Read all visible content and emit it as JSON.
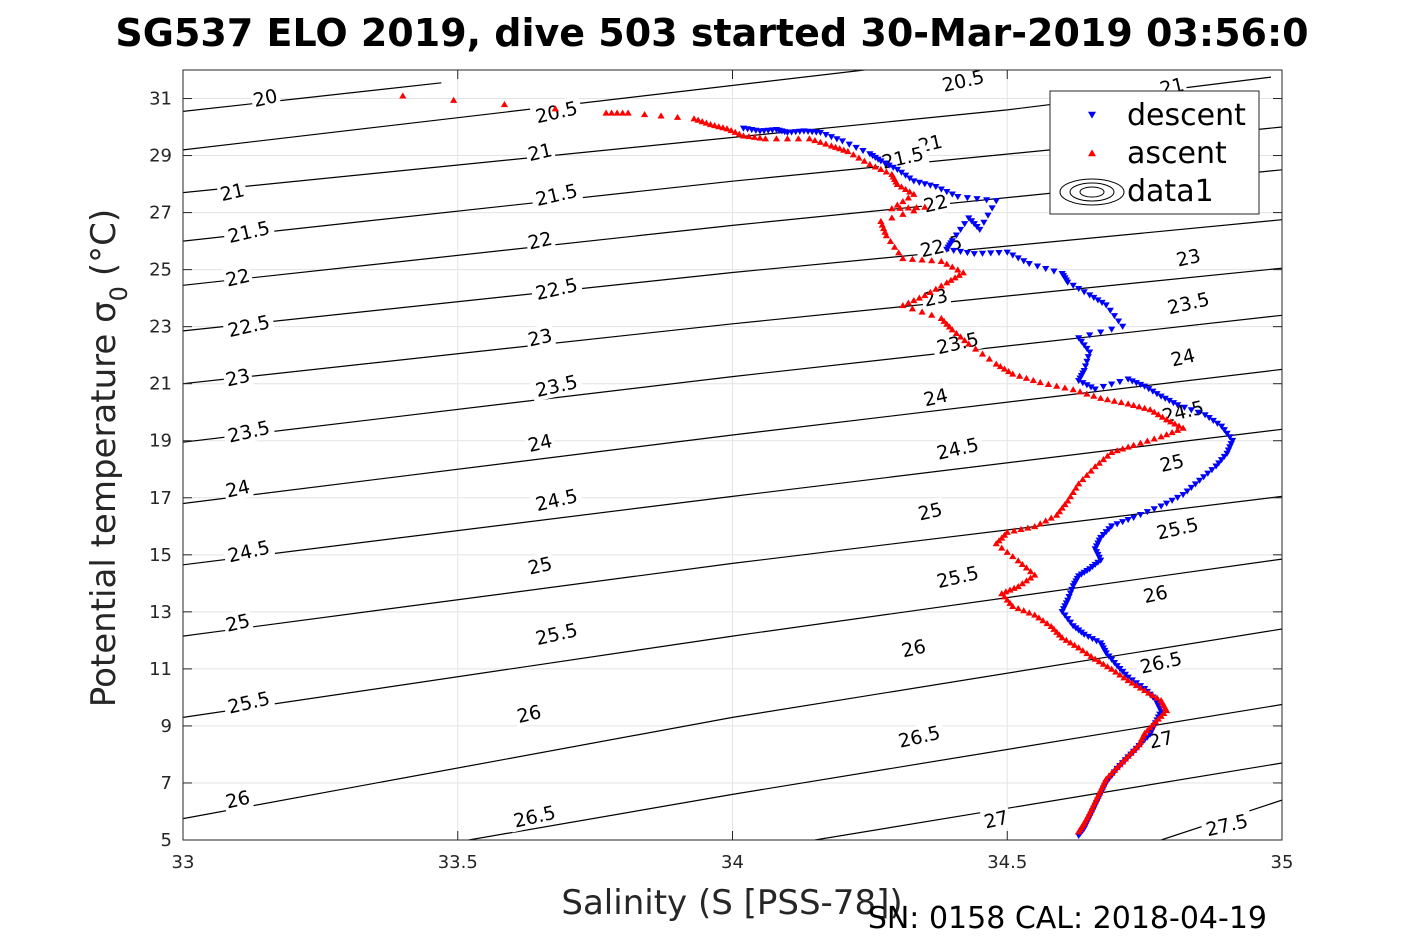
{
  "chart_data": {
    "type": "scatter",
    "title": "SG537 ELO 2019, dive 503 started 30-Mar-2019 03:56:0",
    "xlabel": "Salinity (S [PSS-78])",
    "ylabel_main": "Potential temperature σ",
    "ylabel_sub": "0",
    "ylabel_unit": "(°C)",
    "footer": "SN: 0158  CAL: 2018-04-19",
    "xlim": [
      33,
      35
    ],
    "ylim": [
      5,
      32
    ],
    "x_ticks": [
      33,
      33.5,
      34,
      34.5,
      35
    ],
    "x_tick_labels": [
      "33",
      "33.5",
      "34",
      "34.5",
      "35"
    ],
    "y_ticks": [
      5,
      7,
      9,
      11,
      13,
      15,
      17,
      19,
      21,
      23,
      25,
      27,
      29,
      31
    ],
    "y_tick_labels": [
      "5",
      "7",
      "9",
      "11",
      "13",
      "15",
      "17",
      "19",
      "21",
      "23",
      "25",
      "27",
      "29",
      "31"
    ],
    "grid": true,
    "legend_position": "top-right",
    "legend": [
      {
        "label": "descent",
        "marker": "down-triangle",
        "color": "#0000ff"
      },
      {
        "label": "ascent",
        "marker": "up-triangle",
        "color": "#ff0000"
      },
      {
        "label": "data1",
        "marker": "contour",
        "color": "#000000"
      }
    ],
    "contours": [
      {
        "level": "20",
        "points": [
          [
            33,
            30.55
          ],
          [
            33.47,
            31.55
          ]
        ]
      },
      {
        "level": "20.5",
        "points": [
          [
            33,
            29.2
          ],
          [
            34.24,
            32.0
          ]
        ]
      },
      {
        "level": "21",
        "points": [
          [
            33,
            27.7
          ],
          [
            34.5,
            30.6
          ],
          [
            34.98,
            31.75
          ]
        ]
      },
      {
        "level": "21.5",
        "points": [
          [
            33,
            26.0
          ],
          [
            34.0,
            28.1
          ],
          [
            35,
            30.0
          ]
        ]
      },
      {
        "level": "22",
        "points": [
          [
            33,
            24.45
          ],
          [
            34.0,
            26.55
          ],
          [
            35,
            28.5
          ]
        ]
      },
      {
        "level": "22.5",
        "points": [
          [
            33,
            22.85
          ],
          [
            34.0,
            24.9
          ],
          [
            35,
            26.75
          ]
        ]
      },
      {
        "level": "23",
        "points": [
          [
            33,
            21.0
          ],
          [
            34.0,
            23.1
          ],
          [
            35,
            25.05
          ]
        ]
      },
      {
        "level": "23.5",
        "points": [
          [
            33,
            18.95
          ],
          [
            34.0,
            21.25
          ],
          [
            35,
            23.4
          ]
        ]
      },
      {
        "level": "24",
        "points": [
          [
            33,
            16.8
          ],
          [
            34.0,
            19.2
          ],
          [
            35,
            21.5
          ]
        ]
      },
      {
        "level": "24.5",
        "points": [
          [
            33,
            14.65
          ],
          [
            34.0,
            17.05
          ],
          [
            35,
            19.4
          ]
        ]
      },
      {
        "level": "25",
        "points": [
          [
            33,
            12.15
          ],
          [
            34.0,
            14.7
          ],
          [
            35,
            17.05
          ]
        ]
      },
      {
        "level": "25.5",
        "points": [
          [
            33,
            9.3
          ],
          [
            34.0,
            12.15
          ],
          [
            35,
            14.85
          ]
        ]
      },
      {
        "level": "26",
        "points": [
          [
            33,
            5.75
          ],
          [
            34.0,
            9.3
          ],
          [
            35,
            12.4
          ]
        ]
      },
      {
        "level": "26.5",
        "points": [
          [
            33.52,
            5.0
          ],
          [
            34.0,
            6.6
          ],
          [
            35,
            9.75
          ]
        ]
      },
      {
        "level": "27",
        "points": [
          [
            34.15,
            5.0
          ],
          [
            35,
            7.7
          ]
        ]
      },
      {
        "level": "27.5",
        "points": [
          [
            34.78,
            5.0
          ],
          [
            35,
            6.4
          ]
        ]
      }
    ],
    "contour_labels": [
      {
        "text": "20",
        "x": 33.15,
        "y": 31.0
      },
      {
        "text": "20.5",
        "x": 33.68,
        "y": 30.5
      },
      {
        "text": "20.5",
        "x": 34.42,
        "y": 31.6
      },
      {
        "text": "21",
        "x": 34.36,
        "y": 29.4
      },
      {
        "text": "21",
        "x": 34.8,
        "y": 31.4
      },
      {
        "text": "21",
        "x": 33.09,
        "y": 27.7
      },
      {
        "text": "21",
        "x": 33.65,
        "y": 29.1
      },
      {
        "text": "21.5",
        "x": 33.68,
        "y": 27.6
      },
      {
        "text": "21.5",
        "x": 34.31,
        "y": 28.9
      },
      {
        "text": "21.5",
        "x": 33.12,
        "y": 26.3
      },
      {
        "text": "22",
        "x": 33.1,
        "y": 24.7
      },
      {
        "text": "22",
        "x": 33.65,
        "y": 26.0
      },
      {
        "text": "22",
        "x": 34.37,
        "y": 27.3
      },
      {
        "text": "22.5",
        "x": 33.12,
        "y": 23.0
      },
      {
        "text": "22.5",
        "x": 33.68,
        "y": 24.3
      },
      {
        "text": "22.5",
        "x": 34.38,
        "y": 25.8
      },
      {
        "text": "23",
        "x": 33.1,
        "y": 21.2
      },
      {
        "text": "23",
        "x": 33.65,
        "y": 22.6
      },
      {
        "text": "23",
        "x": 34.37,
        "y": 24.0
      },
      {
        "text": "23",
        "x": 34.83,
        "y": 25.4
      },
      {
        "text": "23.5",
        "x": 33.12,
        "y": 19.3
      },
      {
        "text": "23.5",
        "x": 33.68,
        "y": 20.9
      },
      {
        "text": "23.5",
        "x": 34.41,
        "y": 22.4
      },
      {
        "text": "23.5",
        "x": 34.83,
        "y": 23.8
      },
      {
        "text": "24",
        "x": 33.1,
        "y": 17.3
      },
      {
        "text": "24",
        "x": 33.65,
        "y": 18.9
      },
      {
        "text": "24",
        "x": 34.37,
        "y": 20.5
      },
      {
        "text": "24",
        "x": 34.82,
        "y": 21.9
      },
      {
        "text": "24.5",
        "x": 33.12,
        "y": 15.1
      },
      {
        "text": "24.5",
        "x": 33.68,
        "y": 16.9
      },
      {
        "text": "24.5",
        "x": 34.41,
        "y": 18.7
      },
      {
        "text": "24.5",
        "x": 34.82,
        "y": 20.0
      },
      {
        "text": "25",
        "x": 33.1,
        "y": 12.6
      },
      {
        "text": "25",
        "x": 33.65,
        "y": 14.6
      },
      {
        "text": "25",
        "x": 34.36,
        "y": 16.5
      },
      {
        "text": "25",
        "x": 34.8,
        "y": 18.2
      },
      {
        "text": "25.5",
        "x": 33.12,
        "y": 9.8
      },
      {
        "text": "25.5",
        "x": 33.68,
        "y": 12.2
      },
      {
        "text": "25.5",
        "x": 34.41,
        "y": 14.2
      },
      {
        "text": "25.5",
        "x": 34.81,
        "y": 15.9
      },
      {
        "text": "26",
        "x": 33.1,
        "y": 6.4
      },
      {
        "text": "26",
        "x": 33.63,
        "y": 9.4
      },
      {
        "text": "26",
        "x": 34.33,
        "y": 11.7
      },
      {
        "text": "26",
        "x": 34.77,
        "y": 13.6
      },
      {
        "text": "26.5",
        "x": 33.64,
        "y": 5.8
      },
      {
        "text": "26.5",
        "x": 34.34,
        "y": 8.6
      },
      {
        "text": "26.5",
        "x": 34.78,
        "y": 11.2
      },
      {
        "text": "27",
        "x": 34.48,
        "y": 5.7
      },
      {
        "text": "27",
        "x": 34.78,
        "y": 8.5
      },
      {
        "text": "27.5",
        "x": 34.9,
        "y": 5.5
      }
    ],
    "series": [
      {
        "name": "descent",
        "color": "#0000ff",
        "points": [
          [
            34.02,
            29.95
          ],
          [
            34.05,
            29.85
          ],
          [
            34.08,
            29.9
          ],
          [
            34.1,
            29.8
          ],
          [
            34.13,
            29.85
          ],
          [
            34.16,
            29.8
          ],
          [
            34.2,
            29.5
          ],
          [
            34.25,
            29.05
          ],
          [
            34.27,
            28.8
          ],
          [
            34.3,
            28.5
          ],
          [
            34.33,
            28.1
          ],
          [
            34.37,
            27.9
          ],
          [
            34.41,
            27.55
          ],
          [
            34.48,
            27.4
          ],
          [
            34.45,
            26.4
          ],
          [
            34.43,
            26.8
          ],
          [
            34.4,
            26.0
          ],
          [
            34.39,
            25.7
          ],
          [
            34.44,
            25.55
          ],
          [
            34.5,
            25.6
          ],
          [
            34.54,
            25.2
          ],
          [
            34.6,
            24.85
          ],
          [
            34.61,
            24.55
          ],
          [
            34.65,
            24.1
          ],
          [
            34.68,
            23.75
          ],
          [
            34.71,
            23.0
          ],
          [
            34.63,
            22.6
          ],
          [
            34.65,
            22.1
          ],
          [
            34.64,
            21.45
          ],
          [
            34.63,
            21.1
          ],
          [
            34.66,
            20.8
          ],
          [
            34.72,
            21.15
          ],
          [
            34.75,
            20.9
          ],
          [
            34.78,
            20.55
          ],
          [
            34.81,
            20.25
          ],
          [
            34.86,
            19.9
          ],
          [
            34.89,
            19.5
          ],
          [
            34.91,
            19.0
          ],
          [
            34.9,
            18.55
          ],
          [
            34.88,
            18.1
          ],
          [
            34.85,
            17.6
          ],
          [
            34.82,
            17.1
          ],
          [
            34.78,
            16.7
          ],
          [
            34.73,
            16.3
          ],
          [
            34.69,
            16.0
          ],
          [
            34.67,
            15.6
          ],
          [
            34.66,
            15.2
          ],
          [
            34.67,
            14.8
          ],
          [
            34.65,
            14.5
          ],
          [
            34.63,
            14.25
          ],
          [
            34.62,
            13.9
          ],
          [
            34.61,
            13.4
          ],
          [
            34.6,
            13.0
          ],
          [
            34.62,
            12.5
          ],
          [
            34.64,
            12.2
          ],
          [
            34.67,
            11.9
          ],
          [
            34.68,
            11.55
          ],
          [
            34.7,
            11.1
          ],
          [
            34.72,
            10.7
          ],
          [
            34.75,
            10.3
          ],
          [
            34.77,
            9.9
          ],
          [
            34.78,
            9.5
          ],
          [
            34.77,
            9.1
          ],
          [
            34.76,
            8.7
          ],
          [
            34.74,
            8.3
          ],
          [
            34.72,
            7.9
          ],
          [
            34.7,
            7.5
          ],
          [
            34.68,
            7.0
          ],
          [
            34.67,
            6.6
          ],
          [
            34.66,
            6.2
          ],
          [
            34.65,
            5.8
          ],
          [
            34.64,
            5.4
          ],
          [
            34.63,
            5.15
          ]
        ]
      },
      {
        "name": "ascent",
        "color": "#ff0000",
        "points": [
          [
            33.4,
            31.1
          ],
          [
            33.77,
            30.5
          ],
          [
            33.81,
            30.5
          ],
          [
            33.93,
            30.3
          ],
          [
            33.96,
            30.1
          ],
          [
            33.99,
            29.95
          ],
          [
            34.02,
            29.7
          ],
          [
            34.06,
            29.6
          ],
          [
            34.14,
            29.6
          ],
          [
            34.18,
            29.35
          ],
          [
            34.21,
            29.15
          ],
          [
            34.25,
            28.7
          ],
          [
            34.29,
            28.35
          ],
          [
            34.3,
            28.0
          ],
          [
            34.33,
            27.65
          ],
          [
            34.29,
            27.15
          ],
          [
            34.35,
            27.2
          ],
          [
            34.27,
            26.7
          ],
          [
            34.28,
            26.2
          ],
          [
            34.31,
            25.4
          ],
          [
            34.38,
            25.3
          ],
          [
            34.42,
            24.9
          ],
          [
            34.39,
            24.55
          ],
          [
            34.35,
            24.1
          ],
          [
            34.31,
            23.75
          ],
          [
            34.38,
            23.3
          ],
          [
            34.4,
            22.9
          ],
          [
            34.43,
            22.4
          ],
          [
            34.48,
            21.7
          ],
          [
            34.51,
            21.35
          ],
          [
            34.56,
            21.05
          ],
          [
            34.62,
            20.8
          ],
          [
            34.67,
            20.5
          ],
          [
            34.72,
            20.3
          ],
          [
            34.76,
            20.1
          ],
          [
            34.79,
            19.75
          ],
          [
            34.82,
            19.45
          ],
          [
            34.78,
            19.15
          ],
          [
            34.73,
            18.85
          ],
          [
            34.69,
            18.6
          ],
          [
            34.66,
            18.1
          ],
          [
            34.63,
            17.5
          ],
          [
            34.61,
            16.9
          ],
          [
            34.59,
            16.4
          ],
          [
            34.55,
            16.0
          ],
          [
            34.5,
            15.8
          ],
          [
            34.48,
            15.4
          ],
          [
            34.52,
            14.8
          ],
          [
            34.55,
            14.3
          ],
          [
            34.52,
            13.9
          ],
          [
            34.49,
            13.65
          ],
          [
            34.51,
            13.2
          ],
          [
            34.55,
            12.9
          ],
          [
            34.58,
            12.5
          ],
          [
            34.6,
            12.1
          ],
          [
            34.63,
            11.75
          ],
          [
            34.66,
            11.35
          ],
          [
            34.69,
            11.0
          ],
          [
            34.72,
            10.6
          ],
          [
            34.75,
            10.25
          ],
          [
            34.78,
            9.9
          ],
          [
            34.79,
            9.55
          ],
          [
            34.77,
            9.15
          ],
          [
            34.75,
            8.75
          ],
          [
            34.74,
            8.35
          ],
          [
            34.72,
            7.95
          ],
          [
            34.7,
            7.55
          ],
          [
            34.68,
            7.15
          ],
          [
            34.67,
            6.75
          ],
          [
            34.66,
            6.35
          ],
          [
            34.65,
            5.95
          ],
          [
            34.64,
            5.6
          ],
          [
            34.63,
            5.3
          ]
        ]
      }
    ]
  }
}
